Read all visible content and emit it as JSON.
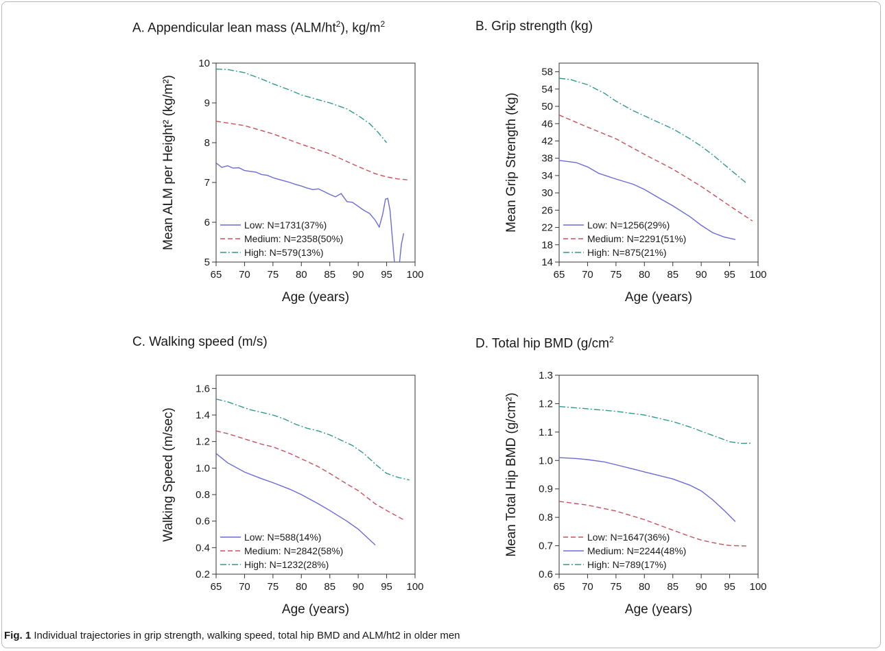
{
  "figure": {
    "caption_label": "Fig. 1",
    "caption_text": " Individual trajectories in grip strength, walking speed, total hip BMD and ALM/ht2 in older men"
  },
  "colors": {
    "low": "#6a6ad8",
    "medium": "#c8505a",
    "high": "#2f9a8a",
    "axis": "#333333"
  },
  "panels": [
    {
      "title_pre": "A.  Appendicular lean mass (ALM/ht",
      "title_sup1": "2",
      "title_mid": "), kg/m",
      "title_sup2": "2"
    },
    {
      "title_pre": "B. Grip strength (kg)",
      "title_sup1": "",
      "title_mid": "",
      "title_sup2": ""
    },
    {
      "title_pre": "C. Walking speed (m/s)",
      "title_sup1": "",
      "title_mid": "",
      "title_sup2": ""
    },
    {
      "title_pre": "D. Total hip BMD (g/cm",
      "title_sup1": "2",
      "title_mid": "",
      "title_sup2": ""
    }
  ],
  "chart_data": [
    {
      "type": "line",
      "title": "A.  Appendicular lean mass (ALM/ht2), kg/m2",
      "xlabel": "Age (years)",
      "ylabel": "Mean ALM per Height² (kg/m²)",
      "xlim": [
        65,
        100
      ],
      "ylim": [
        5,
        10
      ],
      "xticks": [
        65,
        70,
        75,
        80,
        85,
        90,
        95,
        100
      ],
      "yticks": [
        5,
        6,
        7,
        8,
        9,
        10
      ],
      "legend_position": "bottom-left",
      "series": [
        {
          "name": "Low: N=1731(37%)",
          "style": "solid",
          "color_key": "low",
          "x": [
            65,
            66,
            67,
            68,
            69,
            70,
            71,
            72,
            73,
            74,
            75,
            76,
            77,
            78,
            79,
            80,
            81,
            82,
            83,
            84,
            85,
            86,
            87,
            88,
            89,
            90,
            91,
            92,
            93,
            93.7,
            94.3,
            94.8,
            95.2,
            95.6,
            96.0,
            96.4,
            96.8,
            97.2,
            97.6,
            98
          ],
          "y": [
            7.49,
            7.38,
            7.42,
            7.36,
            7.37,
            7.3,
            7.28,
            7.26,
            7.2,
            7.18,
            7.12,
            7.08,
            7.04,
            7.0,
            6.95,
            6.91,
            6.86,
            6.82,
            6.84,
            6.77,
            6.7,
            6.64,
            6.72,
            6.52,
            6.5,
            6.4,
            6.3,
            6.22,
            6.05,
            5.88,
            6.2,
            6.58,
            6.6,
            6.3,
            5.6,
            4.95,
            4.7,
            4.9,
            5.45,
            5.72
          ]
        },
        {
          "name": "Medium: N=2358(50%)",
          "style": "dashed",
          "color_key": "medium",
          "x": [
            65,
            70,
            75,
            80,
            85,
            90,
            93,
            95,
            97,
            99
          ],
          "y": [
            8.54,
            8.43,
            8.22,
            7.96,
            7.72,
            7.4,
            7.22,
            7.14,
            7.09,
            7.06
          ]
        },
        {
          "name": "High: N=579(13%)",
          "style": "dashdot",
          "color_key": "high",
          "x": [
            65,
            67,
            70,
            73,
            75,
            78,
            80,
            83,
            85,
            88,
            90,
            92,
            93.5,
            95
          ],
          "y": [
            9.85,
            9.84,
            9.76,
            9.6,
            9.48,
            9.32,
            9.2,
            9.08,
            9.0,
            8.85,
            8.68,
            8.48,
            8.26,
            8.0
          ]
        }
      ]
    },
    {
      "type": "line",
      "title": "B. Grip strength (kg)",
      "xlabel": "Age (years)",
      "ylabel": "Mean Grip Strength (kg)",
      "xlim": [
        65,
        100
      ],
      "ylim": [
        14,
        60
      ],
      "xticks": [
        65,
        70,
        75,
        80,
        85,
        90,
        95,
        100
      ],
      "yticks": [
        14,
        18,
        22,
        26,
        30,
        34,
        38,
        42,
        46,
        50,
        54,
        58
      ],
      "legend_position": "bottom-left",
      "series": [
        {
          "name": "Low: N=1256(29%)",
          "style": "solid",
          "color_key": "low",
          "x": [
            65,
            68,
            70,
            72,
            75,
            78,
            80,
            83,
            85,
            88,
            90,
            92,
            94,
            96
          ],
          "y": [
            37.5,
            37.0,
            36.0,
            34.5,
            33.2,
            32.0,
            30.8,
            28.5,
            27.0,
            24.5,
            22.5,
            20.8,
            19.8,
            19.2
          ]
        },
        {
          "name": "Medium: N=2291(51%)",
          "style": "dashed",
          "color_key": "medium",
          "x": [
            65,
            70,
            75,
            80,
            85,
            90,
            95,
            99
          ],
          "y": [
            48.0,
            45.2,
            42.5,
            38.9,
            35.5,
            31.5,
            27.0,
            23.5
          ]
        },
        {
          "name": "High: N=875(21%)",
          "style": "dashdot",
          "color_key": "high",
          "x": [
            65,
            67,
            70,
            73,
            75,
            78,
            80,
            83,
            85,
            88,
            90,
            92,
            95,
            98
          ],
          "y": [
            56.5,
            56.2,
            55.0,
            53.0,
            51.2,
            49.0,
            47.8,
            46.0,
            44.8,
            42.5,
            40.8,
            38.8,
            35.5,
            32.2
          ]
        }
      ]
    },
    {
      "type": "line",
      "title": "C. Walking speed (m/s)",
      "xlabel": "Age (years)",
      "ylabel": "Walking Speed (m/sec)",
      "xlim": [
        65,
        100
      ],
      "ylim": [
        0.2,
        1.7
      ],
      "xticks": [
        65,
        70,
        75,
        80,
        85,
        90,
        95,
        100
      ],
      "yticks": [
        0.2,
        0.4,
        0.6,
        0.8,
        1.0,
        1.2,
        1.4,
        1.6
      ],
      "legend_position": "bottom-left",
      "series": [
        {
          "name": "Low: N=588(14%)",
          "style": "solid",
          "color_key": "low",
          "x": [
            65,
            67,
            70,
            73,
            75,
            78,
            80,
            83,
            85,
            88,
            90,
            93
          ],
          "y": [
            1.11,
            1.04,
            0.97,
            0.92,
            0.89,
            0.84,
            0.8,
            0.73,
            0.68,
            0.6,
            0.54,
            0.42
          ]
        },
        {
          "name": "Medium: N=2842(58%)",
          "style": "dashed",
          "color_key": "medium",
          "x": [
            65,
            67,
            70,
            73,
            75,
            78,
            80,
            83,
            85,
            88,
            90,
            93,
            95,
            98
          ],
          "y": [
            1.28,
            1.26,
            1.22,
            1.18,
            1.16,
            1.11,
            1.07,
            1.01,
            0.96,
            0.88,
            0.83,
            0.73,
            0.68,
            0.61
          ]
        },
        {
          "name": "High: N=1232(28%)",
          "style": "dashdot",
          "color_key": "high",
          "x": [
            65,
            67,
            69,
            71,
            73,
            75,
            77,
            79,
            81,
            83,
            85,
            87,
            89,
            91,
            93,
            95,
            97,
            99
          ],
          "y": [
            1.52,
            1.5,
            1.47,
            1.44,
            1.42,
            1.4,
            1.37,
            1.33,
            1.3,
            1.28,
            1.25,
            1.21,
            1.17,
            1.11,
            1.03,
            0.96,
            0.93,
            0.91
          ]
        }
      ]
    },
    {
      "type": "line",
      "title": "D. Total hip BMD (g/cm2",
      "xlabel": "Age (years)",
      "ylabel": "Mean Total Hip BMD (g/cm²)",
      "xlim": [
        65,
        100
      ],
      "ylim": [
        0.6,
        1.3
      ],
      "xticks": [
        65,
        70,
        75,
        80,
        85,
        90,
        95,
        100
      ],
      "yticks": [
        0.6,
        0.7,
        0.8,
        0.9,
        1.0,
        1.1,
        1.2,
        1.3
      ],
      "legend_position": "bottom-left",
      "series": [
        {
          "name": "Low: N=1647(36%)",
          "style": "dashed",
          "color_key": "medium",
          "x": [
            65,
            70,
            75,
            80,
            85,
            88,
            90,
            93,
            95,
            98
          ],
          "y": [
            0.856,
            0.843,
            0.822,
            0.792,
            0.755,
            0.733,
            0.72,
            0.707,
            0.701,
            0.699
          ]
        },
        {
          "name": "Medium: N=2244(48%)",
          "style": "solid",
          "color_key": "low",
          "x": [
            65,
            68,
            70,
            73,
            75,
            78,
            80,
            83,
            85,
            88,
            90,
            92,
            94,
            96
          ],
          "y": [
            1.01,
            1.007,
            1.003,
            0.995,
            0.985,
            0.97,
            0.96,
            0.945,
            0.935,
            0.913,
            0.893,
            0.862,
            0.825,
            0.785
          ]
        },
        {
          "name": "High: N=789(17%)",
          "style": "dashdot",
          "color_key": "high",
          "x": [
            65,
            70,
            75,
            80,
            85,
            88,
            90,
            93,
            95,
            97,
            99
          ],
          "y": [
            1.19,
            1.182,
            1.173,
            1.16,
            1.137,
            1.118,
            1.103,
            1.081,
            1.066,
            1.06,
            1.061
          ]
        }
      ]
    }
  ]
}
